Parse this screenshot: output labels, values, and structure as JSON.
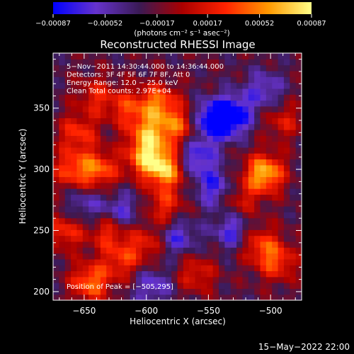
{
  "chart_data": {
    "type": "heatmap",
    "title": "Reconstructed RHESSI Image",
    "xlabel": "Heliocentric X (arcsec)",
    "ylabel": "Heliocentric Y (arcsec)",
    "xlim": [
      -675,
      -475
    ],
    "ylim": [
      193,
      395
    ],
    "x_ticks": [
      -650,
      -600,
      -550,
      -500
    ],
    "x_tick_labels": [
      "−650",
      "−600",
      "−550",
      "−500"
    ],
    "y_ticks": [
      200,
      250,
      300,
      350
    ],
    "y_tick_labels": [
      "200",
      "250",
      "300",
      "350"
    ],
    "colorbar": {
      "min": -0.00087,
      "max": 0.00087,
      "ticks": [
        -0.00087,
        -0.00052,
        -0.00017,
        0.00017,
        0.00052,
        0.00087
      ],
      "tick_labels": [
        "−0.00087",
        "−0.00052",
        "−0.00017",
        "0.00017",
        "0.00052",
        "0.00087"
      ],
      "units": "(photons cm⁻² s⁻¹ asec⁻²)",
      "colors": [
        "#0000ff",
        "#6633cc",
        "#3a1a55",
        "#aa0000",
        "#ff2200",
        "#ff9900",
        "#ffff88"
      ]
    },
    "annotations": [
      "5−Nov−2011 14:30:44.000 to 14:36:44.000",
      "Detectors: 3F 4F 5F 6F 7F 8F, Att 0",
      "Energy Range: 12.0 − 25.0 keV",
      "Clean     Total counts: 2.97E+04"
    ],
    "peak_label": "Position of Peak = [−505,295]",
    "peak": [
      -505,
      295
    ],
    "bright_regions": [
      {
        "x": -505,
        "y": 297,
        "level": 1.0
      },
      {
        "x": -584,
        "y": 300,
        "level": 0.9
      },
      {
        "x": -600,
        "y": 310,
        "level": 0.85
      },
      {
        "x": -598,
        "y": 330,
        "level": 0.72
      },
      {
        "x": -590,
        "y": 355,
        "level": 0.7
      },
      {
        "x": -638,
        "y": 300,
        "level": 0.68
      },
      {
        "x": -660,
        "y": 300,
        "level": 0.6
      },
      {
        "x": -575,
        "y": 335,
        "level": 0.62
      },
      {
        "x": -645,
        "y": 208,
        "level": 0.75
      },
      {
        "x": -630,
        "y": 250,
        "level": 0.55
      },
      {
        "x": -510,
        "y": 240,
        "level": 0.55
      },
      {
        "x": -495,
        "y": 225,
        "level": 0.6
      },
      {
        "x": -620,
        "y": 225,
        "level": 0.5
      },
      {
        "x": -655,
        "y": 330,
        "level": 0.55
      },
      {
        "x": -615,
        "y": 350,
        "level": 0.5
      },
      {
        "x": -640,
        "y": 360,
        "level": 0.45
      },
      {
        "x": -585,
        "y": 270,
        "level": 0.5
      },
      {
        "x": -560,
        "y": 215,
        "level": 0.45
      },
      {
        "x": -665,
        "y": 250,
        "level": 0.55
      },
      {
        "x": -490,
        "y": 340,
        "level": 0.4
      },
      {
        "x": -525,
        "y": 275,
        "level": 0.4
      },
      {
        "x": -600,
        "y": 240,
        "level": 0.45
      }
    ],
    "dark_regions": [
      {
        "x": -545,
        "y": 340,
        "level": -0.9
      },
      {
        "x": -530,
        "y": 345,
        "level": -0.7
      },
      {
        "x": -560,
        "y": 310,
        "level": -0.6
      },
      {
        "x": -545,
        "y": 285,
        "level": -0.55
      },
      {
        "x": -530,
        "y": 250,
        "level": -0.55
      },
      {
        "x": -620,
        "y": 265,
        "level": -0.5
      },
      {
        "x": -575,
        "y": 245,
        "level": -0.5
      },
      {
        "x": -505,
        "y": 365,
        "level": -0.45
      },
      {
        "x": -650,
        "y": 270,
        "level": -0.4
      },
      {
        "x": -595,
        "y": 205,
        "level": -0.45
      }
    ]
  },
  "footer": {
    "date": "15−May−2022 22:00"
  }
}
